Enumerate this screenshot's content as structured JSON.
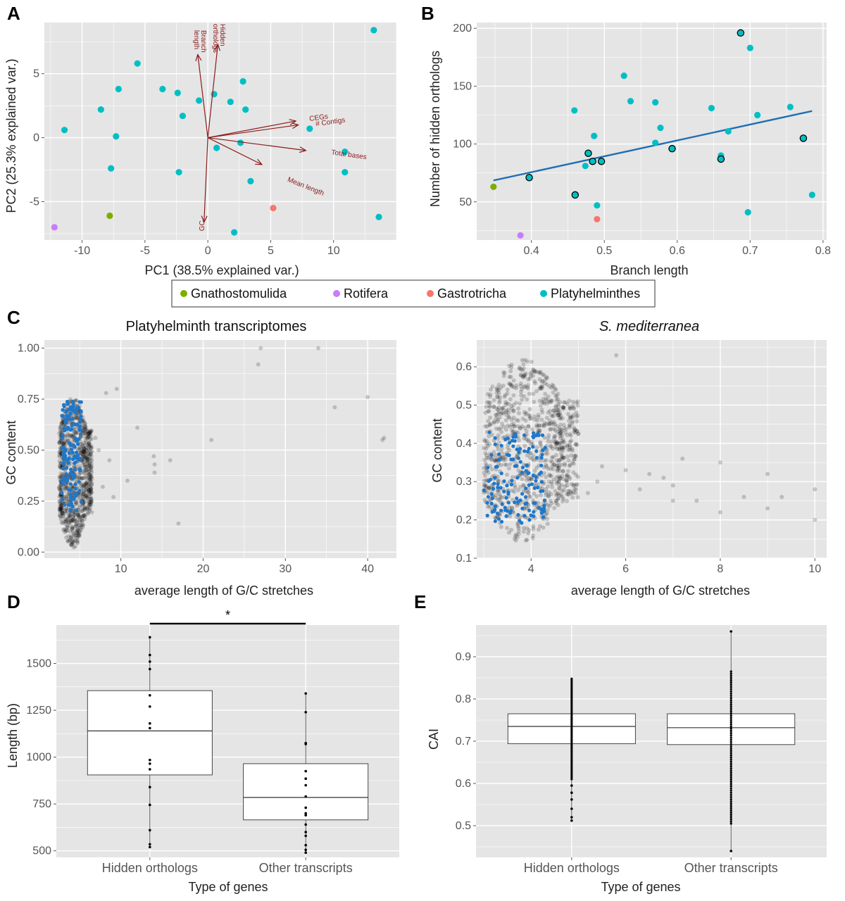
{
  "colors": {
    "panel_bg": "#e5e5e5",
    "grid": "#ffffff",
    "Gnathostomulida": "#7cae00",
    "Rotifera": "#c77cff",
    "Gastrotricha": "#f8766d",
    "Platyhelminthes": "#00bfc4",
    "arrow": "#8b1a1a",
    "trend": "#1f6fb5",
    "highlight": "#1f77c9"
  },
  "legend": {
    "items": [
      {
        "label": "Gnathostomulida",
        "color": "#7cae00"
      },
      {
        "label": "Rotifera",
        "color": "#c77cff"
      },
      {
        "label": "Gastrotricha",
        "color": "#f8766d"
      },
      {
        "label": "Platyhelminthes",
        "color": "#00bfc4"
      }
    ]
  },
  "chart_data": [
    {
      "panel": "A",
      "type": "scatter",
      "subtype": "pca-biplot",
      "xlabel": "PC1 (38.5% explained var.)",
      "ylabel": "PC2 (25.3% explained var.)",
      "xlim": [
        -13,
        15
      ],
      "ylim": [
        -8,
        9
      ],
      "xticks": [
        -10,
        -5,
        0,
        5,
        10
      ],
      "yticks": [
        -5,
        0,
        5
      ],
      "grid": true,
      "points": [
        {
          "x": -12.2,
          "y": -7.0,
          "group": "Rotifera"
        },
        {
          "x": -7.8,
          "y": -6.1,
          "group": "Gnathostomulida"
        },
        {
          "x": 5.2,
          "y": -5.5,
          "group": "Gastrotricha"
        },
        {
          "x": -11.4,
          "y": 0.6,
          "group": "Platyhelminthes"
        },
        {
          "x": -8.5,
          "y": 2.2,
          "group": "Platyhelminthes"
        },
        {
          "x": -7.1,
          "y": 3.8,
          "group": "Platyhelminthes"
        },
        {
          "x": -7.3,
          "y": 0.1,
          "group": "Platyhelminthes"
        },
        {
          "x": -7.7,
          "y": -2.4,
          "group": "Platyhelminthes"
        },
        {
          "x": -5.6,
          "y": 5.8,
          "group": "Platyhelminthes"
        },
        {
          "x": -3.6,
          "y": 3.8,
          "group": "Platyhelminthes"
        },
        {
          "x": -2.4,
          "y": 3.5,
          "group": "Platyhelminthes"
        },
        {
          "x": -2.0,
          "y": 1.7,
          "group": "Platyhelminthes"
        },
        {
          "x": -2.3,
          "y": -2.7,
          "group": "Platyhelminthes"
        },
        {
          "x": -0.7,
          "y": 2.9,
          "group": "Platyhelminthes"
        },
        {
          "x": 0.5,
          "y": 3.4,
          "group": "Platyhelminthes"
        },
        {
          "x": 0.7,
          "y": -0.8,
          "group": "Platyhelminthes"
        },
        {
          "x": 1.8,
          "y": 2.8,
          "group": "Platyhelminthes"
        },
        {
          "x": 2.8,
          "y": 4.4,
          "group": "Platyhelminthes"
        },
        {
          "x": 3.0,
          "y": 2.2,
          "group": "Platyhelminthes"
        },
        {
          "x": 2.6,
          "y": -0.4,
          "group": "Platyhelminthes"
        },
        {
          "x": 3.4,
          "y": -3.4,
          "group": "Platyhelminthes"
        },
        {
          "x": 2.1,
          "y": -7.4,
          "group": "Platyhelminthes"
        },
        {
          "x": 8.1,
          "y": 0.7,
          "group": "Platyhelminthes"
        },
        {
          "x": 10.9,
          "y": -1.1,
          "group": "Platyhelminthes"
        },
        {
          "x": 10.9,
          "y": -2.7,
          "group": "Platyhelminthes"
        },
        {
          "x": 13.2,
          "y": 8.4,
          "group": "Platyhelminthes"
        },
        {
          "x": 13.6,
          "y": -6.2,
          "group": "Platyhelminthes"
        }
      ],
      "loadings": [
        {
          "label": "Branch\nlength",
          "x": -0.8,
          "y": 6.5,
          "lx": -0.5,
          "ly": 8.4,
          "rot": 90
        },
        {
          "label": "Hidden\northologs",
          "x": 0.8,
          "y": 7.3,
          "lx": 1.0,
          "ly": 8.9,
          "rot": 90
        },
        {
          "label": "CEGs",
          "x": 7.0,
          "y": 1.3,
          "lx": 8.1,
          "ly": 1.3,
          "rot": -8
        },
        {
          "label": "# Contigs",
          "x": 7.2,
          "y": 1.0,
          "lx": 8.6,
          "ly": 0.9,
          "rot": -8
        },
        {
          "label": "Total bases",
          "x": 7.8,
          "y": -1.0,
          "lx": 9.8,
          "ly": -1.3,
          "rot": 8
        },
        {
          "label": "Mean length",
          "x": 4.3,
          "y": -2.1,
          "lx": 6.3,
          "ly": -3.4,
          "rot": 22
        },
        {
          "label": "GC",
          "x": -0.3,
          "y": -6.6,
          "lx": -0.3,
          "ly": -7.3,
          "rot": -90
        }
      ]
    },
    {
      "panel": "B",
      "type": "scatter",
      "xlabel": "Branch length",
      "ylabel": "Number of hidden orthologs",
      "xlim": [
        0.325,
        0.805
      ],
      "ylim": [
        17,
        205
      ],
      "xticks": [
        0.4,
        0.5,
        0.6,
        0.7,
        0.8
      ],
      "yticks": [
        50,
        100,
        150,
        200
      ],
      "grid": true,
      "trend": {
        "x0": 0.348,
        "y0": 68.5,
        "x1": 0.785,
        "y1": 128.5
      },
      "points": [
        {
          "x": 0.348,
          "y": 63,
          "group": "Gnathostomulida"
        },
        {
          "x": 0.385,
          "y": 21,
          "group": "Rotifera"
        },
        {
          "x": 0.49,
          "y": 35,
          "group": "Gastrotricha"
        },
        {
          "x": 0.397,
          "y": 71,
          "group": "Platyhelminthes",
          "outlined": true
        },
        {
          "x": 0.46,
          "y": 56,
          "group": "Platyhelminthes",
          "outlined": true
        },
        {
          "x": 0.459,
          "y": 129,
          "group": "Platyhelminthes"
        },
        {
          "x": 0.474,
          "y": 81,
          "group": "Platyhelminthes"
        },
        {
          "x": 0.478,
          "y": 92,
          "group": "Platyhelminthes",
          "outlined": true
        },
        {
          "x": 0.484,
          "y": 85,
          "group": "Platyhelminthes",
          "outlined": true
        },
        {
          "x": 0.486,
          "y": 107,
          "group": "Platyhelminthes"
        },
        {
          "x": 0.49,
          "y": 47,
          "group": "Platyhelminthes"
        },
        {
          "x": 0.496,
          "y": 85,
          "group": "Platyhelminthes",
          "outlined": true
        },
        {
          "x": 0.527,
          "y": 159,
          "group": "Platyhelminthes"
        },
        {
          "x": 0.536,
          "y": 137,
          "group": "Platyhelminthes"
        },
        {
          "x": 0.57,
          "y": 136,
          "group": "Platyhelminthes"
        },
        {
          "x": 0.57,
          "y": 101,
          "group": "Platyhelminthes"
        },
        {
          "x": 0.577,
          "y": 114,
          "group": "Platyhelminthes"
        },
        {
          "x": 0.593,
          "y": 96,
          "group": "Platyhelminthes",
          "outlined": true
        },
        {
          "x": 0.647,
          "y": 131,
          "group": "Platyhelminthes"
        },
        {
          "x": 0.66,
          "y": 90,
          "group": "Platyhelminthes"
        },
        {
          "x": 0.66,
          "y": 87,
          "group": "Platyhelminthes",
          "outlined": true
        },
        {
          "x": 0.67,
          "y": 111,
          "group": "Platyhelminthes"
        },
        {
          "x": 0.687,
          "y": 196,
          "group": "Platyhelminthes",
          "outlined": true
        },
        {
          "x": 0.697,
          "y": 41,
          "group": "Platyhelminthes"
        },
        {
          "x": 0.7,
          "y": 183,
          "group": "Platyhelminthes"
        },
        {
          "x": 0.71,
          "y": 125,
          "group": "Platyhelminthes"
        },
        {
          "x": 0.755,
          "y": 132,
          "group": "Platyhelminthes"
        },
        {
          "x": 0.773,
          "y": 105,
          "group": "Platyhelminthes",
          "outlined": true
        },
        {
          "x": 0.785,
          "y": 56,
          "group": "Platyhelminthes"
        }
      ]
    },
    {
      "panel": "C-left",
      "type": "scatter",
      "title": "Platyhelminth transcriptomes",
      "xlabel": "average length of G/C stretches",
      "ylabel": "GC content",
      "xlim": [
        0.7,
        43.5
      ],
      "ylim": [
        -0.03,
        1.04
      ],
      "xticks": [
        10,
        20,
        30,
        40
      ],
      "yticks": [
        0.0,
        0.25,
        0.5,
        0.75,
        1.0
      ],
      "grid": true,
      "dense_cloud": {
        "x_range": [
          2.5,
          6.5
        ],
        "y_range": [
          0.02,
          0.77
        ],
        "description": "black overlapping points"
      },
      "highlight_range": {
        "x_range": [
          2.8,
          5.2
        ],
        "y_range": [
          0.2,
          0.74
        ],
        "color": "blue"
      },
      "sparse_points": [
        {
          "x": 6.9,
          "y": 0.56
        },
        {
          "x": 7.3,
          "y": 0.5
        },
        {
          "x": 7.8,
          "y": 0.32
        },
        {
          "x": 8.2,
          "y": 0.78
        },
        {
          "x": 8.6,
          "y": 0.45
        },
        {
          "x": 9.1,
          "y": 0.27
        },
        {
          "x": 9.5,
          "y": 0.8
        },
        {
          "x": 10.8,
          "y": 0.35
        },
        {
          "x": 12.0,
          "y": 0.61
        },
        {
          "x": 14.0,
          "y": 0.47
        },
        {
          "x": 14.1,
          "y": 0.43
        },
        {
          "x": 14.1,
          "y": 0.39
        },
        {
          "x": 16.0,
          "y": 0.45
        },
        {
          "x": 17.0,
          "y": 0.14
        },
        {
          "x": 21.0,
          "y": 0.55
        },
        {
          "x": 26.7,
          "y": 0.92
        },
        {
          "x": 27.0,
          "y": 1.0
        },
        {
          "x": 34.0,
          "y": 1.0
        },
        {
          "x": 36.0,
          "y": 0.71
        },
        {
          "x": 40.0,
          "y": 0.76
        },
        {
          "x": 41.8,
          "y": 0.55
        },
        {
          "x": 42.0,
          "y": 0.56
        }
      ]
    },
    {
      "panel": "C-right",
      "type": "scatter",
      "title": "S. mediterranea",
      "xlabel": "average length of G/C stretches",
      "ylabel": "GC content",
      "xlim": [
        2.85,
        10.25
      ],
      "ylim": [
        0.1,
        0.67
      ],
      "xticks": [
        4,
        6,
        8,
        10
      ],
      "yticks": [
        0.1,
        0.2,
        0.3,
        0.4,
        0.5,
        0.6
      ],
      "grid": true,
      "dense_cloud": {
        "x_range": [
          3.0,
          5.0
        ],
        "y_range": [
          0.14,
          0.62
        ],
        "description": "black overlapping points"
      },
      "highlight_range": {
        "x_range": [
          3.0,
          4.3
        ],
        "y_range": [
          0.19,
          0.43
        ],
        "color": "blue"
      },
      "sparse_points": [
        {
          "x": 5.2,
          "y": 0.27
        },
        {
          "x": 5.4,
          "y": 0.3
        },
        {
          "x": 5.5,
          "y": 0.34
        },
        {
          "x": 5.8,
          "y": 0.63
        },
        {
          "x": 6.0,
          "y": 0.33
        },
        {
          "x": 6.3,
          "y": 0.28
        },
        {
          "x": 6.5,
          "y": 0.32
        },
        {
          "x": 6.8,
          "y": 0.31
        },
        {
          "x": 7.0,
          "y": 0.25
        },
        {
          "x": 7.0,
          "y": 0.29
        },
        {
          "x": 7.2,
          "y": 0.36
        },
        {
          "x": 7.5,
          "y": 0.25
        },
        {
          "x": 8.0,
          "y": 0.35
        },
        {
          "x": 8.0,
          "y": 0.22
        },
        {
          "x": 8.5,
          "y": 0.26
        },
        {
          "x": 9.0,
          "y": 0.32
        },
        {
          "x": 9.0,
          "y": 0.23
        },
        {
          "x": 9.3,
          "y": 0.26
        },
        {
          "x": 10.0,
          "y": 0.28
        },
        {
          "x": 10.0,
          "y": 0.2
        }
      ]
    },
    {
      "panel": "D",
      "type": "box",
      "xlabel": "Type of genes",
      "ylabel": "Length (bp)",
      "ylim": [
        465,
        1705
      ],
      "yticks": [
        500,
        750,
        1000,
        1250,
        1500
      ],
      "categories": [
        "Hidden orthologs",
        "Other transcripts"
      ],
      "significance": {
        "from": 0,
        "to": 1,
        "label": "*"
      },
      "boxes": [
        {
          "q1": 905,
          "median": 1140,
          "q3": 1355,
          "min": 520,
          "max": 1640,
          "points": [
            520,
            535,
            610,
            745,
            840,
            935,
            965,
            985,
            1155,
            1180,
            1270,
            1330,
            1470,
            1510,
            1545,
            1640
          ]
        },
        {
          "q1": 665,
          "median": 785,
          "q3": 965,
          "min": 490,
          "max": 1340,
          "points": [
            490,
            505,
            530,
            580,
            600,
            640,
            690,
            700,
            730,
            790,
            850,
            885,
            925,
            1070,
            1075,
            1240,
            1340
          ]
        }
      ]
    },
    {
      "panel": "E",
      "type": "box",
      "xlabel": "Type of genes",
      "ylabel": "CAI",
      "ylim": [
        0.425,
        0.975
      ],
      "yticks": [
        0.5,
        0.6,
        0.7,
        0.8,
        0.9
      ],
      "categories": [
        "Hidden orthologs",
        "Other transcripts"
      ],
      "boxes": [
        {
          "q1": 0.694,
          "median": 0.735,
          "q3": 0.765,
          "min": 0.512,
          "max": 0.848,
          "spread": [
            0.61,
            0.848
          ],
          "points": [
            0.512,
            0.52,
            0.54,
            0.562,
            0.578,
            0.595
          ]
        },
        {
          "q1": 0.692,
          "median": 0.732,
          "q3": 0.765,
          "min": 0.44,
          "max": 0.96,
          "spread": [
            0.505,
            0.865
          ],
          "points": [
            0.44,
            0.96
          ]
        }
      ]
    }
  ],
  "panels": {
    "A": {
      "letter": "A",
      "xlabel": "PC1 (38.5% explained var.)",
      "ylabel": "PC2 (25.3% explained var.)"
    },
    "B": {
      "letter": "B",
      "xlabel": "Branch length",
      "ylabel": "Number of hidden orthologs"
    },
    "C": {
      "letter": "C",
      "title_left": "Platyhelminth transcriptomes",
      "title_right": "S. mediterranea",
      "xlabel": "average length of G/C stretches",
      "ylabel": "GC content"
    },
    "D": {
      "letter": "D",
      "xlabel": "Type of genes",
      "ylabel": "Length (bp)"
    },
    "E": {
      "letter": "E",
      "xlabel": "Type of genes",
      "ylabel": "CAI"
    }
  }
}
